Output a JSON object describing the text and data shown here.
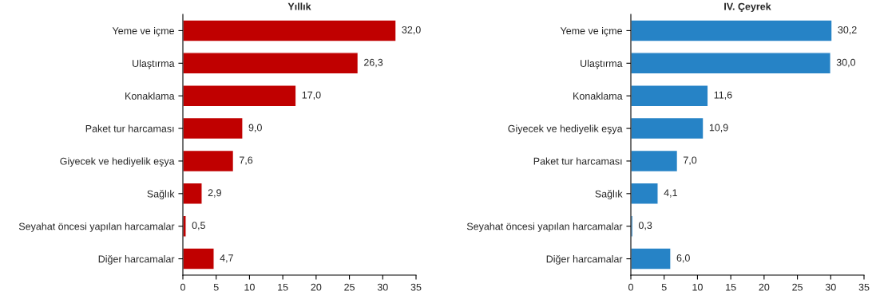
{
  "chart_data": [
    {
      "type": "bar",
      "title": "Yıllık",
      "orientation": "horizontal",
      "categories": [
        "Yeme ve içme",
        "Ulaştırma",
        "Konaklama",
        "Paket tur harcaması",
        "Giyecek ve hediyelik eşya",
        "Sağlık",
        "Seyahat öncesi yapılan harcamalar",
        "Diğer harcamalar"
      ],
      "values": [
        32.0,
        26.3,
        17.0,
        9.0,
        7.6,
        2.9,
        0.5,
        4.7
      ],
      "value_labels": [
        "32,0",
        "26,3",
        "17,0",
        "9,0",
        "7,6",
        "2,9",
        "0,5",
        "4,7"
      ],
      "color": "#c00000",
      "xlim": [
        0,
        35
      ],
      "xticks": [
        0,
        5,
        10,
        15,
        20,
        25,
        30,
        35
      ],
      "grid": false,
      "legend": false
    },
    {
      "type": "bar",
      "title": "IV. Çeyrek",
      "orientation": "horizontal",
      "categories": [
        "Yeme ve içme",
        "Ulaştırma",
        "Konaklama",
        "Giyecek ve hediyelik eşya",
        "Paket tur harcaması",
        "Sağlık",
        "Seyahat öncesi yapılan harcamalar",
        "Diğer harcamalar"
      ],
      "values": [
        30.2,
        30.0,
        11.6,
        10.9,
        7.0,
        4.1,
        0.3,
        6.0
      ],
      "value_labels": [
        "30,2",
        "30,0",
        "11,6",
        "10,9",
        "7,0",
        "4,1",
        "0,3",
        "6,0"
      ],
      "color": "#2683c6",
      "xlim": [
        0,
        35
      ],
      "xticks": [
        0,
        5,
        10,
        15,
        20,
        25,
        30,
        35
      ],
      "grid": false,
      "legend": false
    }
  ]
}
